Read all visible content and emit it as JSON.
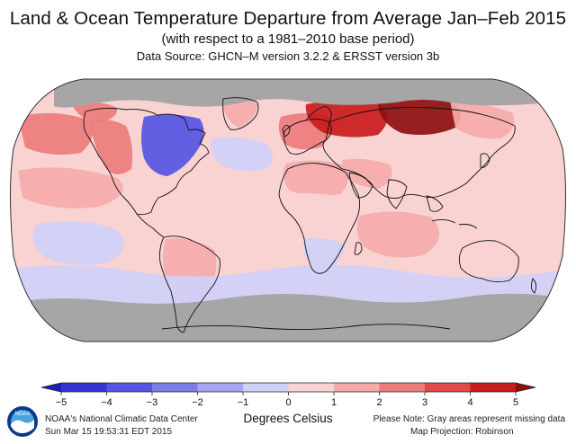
{
  "header": {
    "title": "Land & Ocean Temperature Departure from Average Jan–Feb 2015",
    "subtitle": "(with respect to a 1981–2010 base period)",
    "source": "Data Source: GHCN–M version 3.2.2 & ERSST version 3b"
  },
  "chart_data": {
    "type": "heatmap",
    "projection": "Robinson",
    "variable": "Temperature departure from average",
    "units": "Degrees Celsius",
    "period": "Jan–Feb 2015",
    "base_period": "1981–2010",
    "missing_color": "#a6a6a6",
    "colorbar": {
      "min": -5,
      "max": 5,
      "ticks": [
        -5,
        -4,
        -3,
        -2,
        -1,
        0,
        1,
        2,
        3,
        4,
        5
      ],
      "tick_labels": [
        "−5",
        "−4",
        "−3",
        "−2",
        "−1",
        "0",
        "1",
        "2",
        "3",
        "4",
        "5"
      ],
      "colors": [
        "#1f1fb4",
        "#3434d6",
        "#5555e3",
        "#7d7de9",
        "#a6a6f0",
        "#cfd0f8",
        "#f9d2d2",
        "#f5aaaa",
        "#ec7c7c",
        "#e04a4a",
        "#c91c1c",
        "#8e0f0f"
      ],
      "label": "Degrees Celsius"
    },
    "regions": [
      {
        "name": "Arctic (missing)",
        "anomaly": null
      },
      {
        "name": "Eastern North America",
        "anomaly": -4
      },
      {
        "name": "Western North America",
        "anomaly": 2.5
      },
      {
        "name": "Alaska",
        "anomaly": 2
      },
      {
        "name": "Greenland",
        "anomaly": 1
      },
      {
        "name": "North Atlantic",
        "anomaly": -0.5
      },
      {
        "name": "Europe",
        "anomaly": 2
      },
      {
        "name": "Western Russia",
        "anomaly": 4
      },
      {
        "name": "Central Siberia",
        "anomaly": 5
      },
      {
        "name": "Eastern Siberia",
        "anomaly": 1.5
      },
      {
        "name": "Northeast Pacific",
        "anomaly": 2
      },
      {
        "name": "Eastern Tropical Pacific",
        "anomaly": 1
      },
      {
        "name": "Central Pacific",
        "anomaly": 0.5
      },
      {
        "name": "North Africa",
        "anomaly": 1.5
      },
      {
        "name": "Middle East",
        "anomaly": 1
      },
      {
        "name": "Central Africa",
        "anomaly": 0.5
      },
      {
        "name": "South Africa",
        "anomaly": -1
      },
      {
        "name": "Indian Ocean",
        "anomaly": 1
      },
      {
        "name": "South America",
        "anomaly": 1
      },
      {
        "name": "Southeast Pacific",
        "anomaly": -1
      },
      {
        "name": "Australia",
        "anomaly": 0.5
      },
      {
        "name": "Southern Ocean",
        "anomaly": -1
      },
      {
        "name": "Antarctica (missing)",
        "anomaly": null
      }
    ]
  },
  "footer": {
    "org": "NOAA's National Climatic Data Center",
    "date": "Sun Mar 15 19:53:31 EDT 2015",
    "note": "Please Note: Gray areas represent missing data",
    "projection_label": "Map Projection: Robinson",
    "logo_text": "NOAA"
  }
}
